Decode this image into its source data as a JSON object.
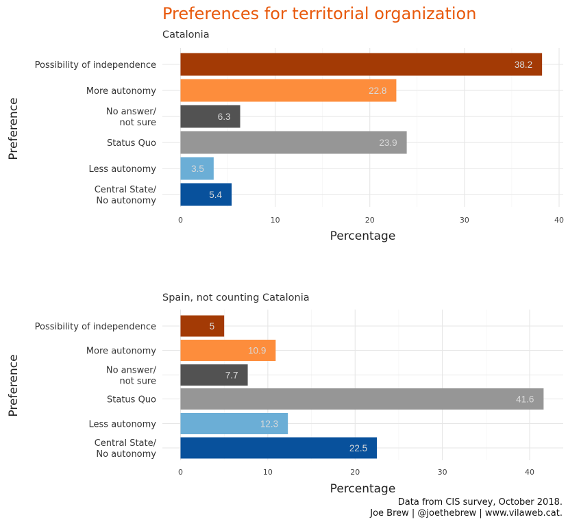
{
  "title": "Preferences for territorial organization",
  "colors": [
    "#A33A05",
    "#FD8D3C",
    "#525252",
    "#969696",
    "#6BAED6",
    "#08519C"
  ],
  "chart_data": [
    {
      "type": "bar",
      "orientation": "horizontal",
      "subtitle": "Catalonia",
      "categories": [
        "Possibility of independence",
        "More autonomy",
        "No answer/\nnot sure",
        "Status Quo",
        "Less autonomy",
        "Central State/\nNo autonomy"
      ],
      "values": [
        38.2,
        22.8,
        6.3,
        23.9,
        3.5,
        5.4
      ],
      "value_labels": [
        "38.2",
        "22.8",
        "6.3",
        "23.9",
        "3.5",
        "5.4"
      ],
      "xlabel": "Percentage",
      "ylabel": "Preference",
      "xlim": [
        0,
        40
      ],
      "xticks": [
        0,
        10,
        20,
        30,
        40
      ],
      "grid": true
    },
    {
      "type": "bar",
      "orientation": "horizontal",
      "subtitle": "Spain, not counting Catalonia",
      "categories": [
        "Possibility of independence",
        "More autonomy",
        "No answer/\nnot sure",
        "Status Quo",
        "Less autonomy",
        "Central State/\nNo autonomy"
      ],
      "values": [
        5,
        10.9,
        7.7,
        41.6,
        12.3,
        22.5
      ],
      "value_labels": [
        "5",
        "10.9",
        "7.7",
        "41.6",
        "12.3",
        "22.5"
      ],
      "xlabel": "Percentage",
      "ylabel": "Preference",
      "xlim": [
        0,
        40
      ],
      "xticks": [
        0,
        10,
        20,
        30,
        40
      ],
      "grid": true
    }
  ],
  "caption": {
    "line1": "Data from CIS survey, October 2018.",
    "line2": "Joe Brew | @joethebrew | www.vilaweb.cat."
  }
}
